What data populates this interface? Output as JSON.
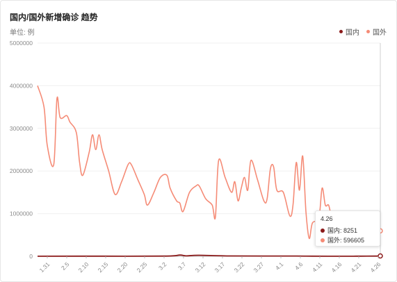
{
  "header": {
    "title": "国内/国外新增确诊 趋势",
    "unit": "单位: 例"
  },
  "legend": [
    {
      "label": "国内",
      "color": "#8b1a1a"
    },
    {
      "label": "国外",
      "color": "#f58b76"
    }
  ],
  "tooltip": {
    "date": "4.26",
    "domestic": "国内: 8251",
    "foreign": "国外: 596605"
  },
  "chart_data": {
    "type": "line",
    "title": "国内/国外新增确诊 趋势",
    "ylabel": "单位: 例",
    "ylim": [
      0,
      5000000
    ],
    "yticks": [
      "0",
      "1000000",
      "2000000",
      "3000000",
      "4000000",
      "5000000"
    ],
    "x_tick_labels": [
      "1.31",
      "2.5",
      "2.10",
      "2.15",
      "2.20",
      "2.25",
      "3.2",
      "3.7",
      "3.12",
      "3.17",
      "3.22",
      "3.27",
      "4.1",
      "4.6",
      "4.11",
      "4.16",
      "4.21",
      "4.26"
    ],
    "grid": true,
    "legend_position": "top-right",
    "series": [
      {
        "name": "国外",
        "color": "#f58b76",
        "points": [
          [
            0,
            4000000
          ],
          [
            2,
            3500000
          ],
          [
            3,
            2600000
          ],
          [
            5,
            2150000
          ],
          [
            6,
            3700000
          ],
          [
            7,
            3250000
          ],
          [
            9,
            3300000
          ],
          [
            10,
            3150000
          ],
          [
            12,
            2900000
          ],
          [
            13,
            2200000
          ],
          [
            14,
            1900000
          ],
          [
            16,
            2450000
          ],
          [
            17,
            2850000
          ],
          [
            18,
            2500000
          ],
          [
            19,
            2850000
          ],
          [
            20,
            2500000
          ],
          [
            22,
            2000000
          ],
          [
            24,
            1450000
          ],
          [
            26,
            1750000
          ],
          [
            28,
            2150000
          ],
          [
            29,
            2150000
          ],
          [
            31,
            1800000
          ],
          [
            33,
            1450000
          ],
          [
            34,
            1200000
          ],
          [
            36,
            1500000
          ],
          [
            38,
            1850000
          ],
          [
            40,
            1900000
          ],
          [
            41,
            1600000
          ],
          [
            43,
            1300000
          ],
          [
            44,
            1250000
          ],
          [
            45,
            1050000
          ],
          [
            47,
            1500000
          ],
          [
            49,
            1650000
          ],
          [
            50,
            1650000
          ],
          [
            52,
            1350000
          ],
          [
            54,
            1200000
          ],
          [
            55,
            920000
          ],
          [
            56,
            2250000
          ],
          [
            58,
            1850000
          ],
          [
            60,
            1500000
          ],
          [
            61,
            1750000
          ],
          [
            62,
            1300000
          ],
          [
            63,
            1600000
          ],
          [
            64,
            1850000
          ],
          [
            65,
            1550000
          ],
          [
            66,
            2250000
          ],
          [
            68,
            1800000
          ],
          [
            70,
            1300000
          ],
          [
            71,
            1350000
          ],
          [
            72,
            2050000
          ],
          [
            73,
            2100000
          ],
          [
            74,
            1550000
          ],
          [
            76,
            1500000
          ],
          [
            78,
            950000
          ],
          [
            79,
            1200000
          ],
          [
            80,
            2200000
          ],
          [
            81,
            1550000
          ],
          [
            82,
            2350000
          ],
          [
            83,
            1050000
          ],
          [
            84,
            420000
          ],
          [
            85,
            780000
          ],
          [
            87,
            900000
          ],
          [
            88,
            1600000
          ],
          [
            89,
            1200000
          ],
          [
            90,
            1200000
          ],
          [
            91,
            950000
          ],
          [
            93,
            950000
          ],
          [
            95,
            1050000
          ],
          [
            97,
            950000
          ],
          [
            99,
            700000
          ],
          [
            101,
            700000
          ],
          [
            103,
            550000
          ],
          [
            105,
            380000
          ],
          [
            106,
            596605
          ]
        ]
      },
      {
        "name": "国内",
        "color": "#8b1a1a",
        "points": [
          [
            0,
            2000
          ],
          [
            20,
            3000
          ],
          [
            40,
            5000
          ],
          [
            44,
            30000
          ],
          [
            46,
            10000
          ],
          [
            50,
            25000
          ],
          [
            60,
            8000
          ],
          [
            80,
            6000
          ],
          [
            85,
            3000
          ],
          [
            95,
            2000
          ],
          [
            100,
            3000
          ],
          [
            105,
            5000
          ],
          [
            106,
            8251
          ]
        ]
      }
    ]
  }
}
